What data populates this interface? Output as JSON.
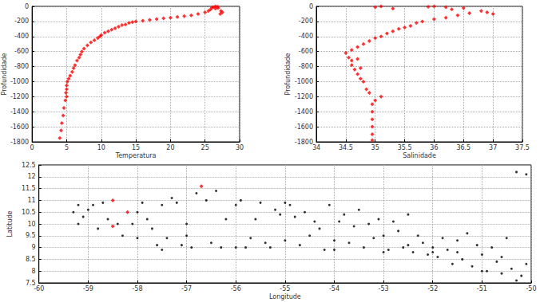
{
  "chart_data": [
    {
      "type": "scatter",
      "x_label": "Temperatura",
      "y_label": "Profundidade",
      "xlim": [
        0,
        30
      ],
      "xticks": [
        0,
        5,
        10,
        15,
        20,
        25,
        30
      ],
      "ylim": [
        -1800,
        0
      ],
      "yticks": [
        -1800,
        -1600,
        -1400,
        -1200,
        -1000,
        -800,
        -600,
        -400,
        -200,
        0
      ],
      "grid": true,
      "series": [
        {
          "color": "#ff0000",
          "marker": "diamond",
          "x": [
            26.5,
            26.8,
            26.2,
            27.3,
            27.5,
            27.2,
            26.9,
            26.5,
            25.8,
            26,
            25.5,
            25,
            24,
            23,
            22,
            21,
            20,
            19,
            18,
            17,
            16,
            15,
            14.5,
            14,
            13.5,
            13,
            12.5,
            12,
            11.5,
            11,
            10.5,
            10,
            9.8,
            9.5,
            9,
            8.5,
            8,
            7.5,
            7.2,
            7,
            6.8,
            6.5,
            6.2,
            6,
            5.8,
            5.5,
            5.3,
            5.1,
            5,
            5,
            4.9,
            5,
            4.8,
            4.6,
            4.5,
            4.3,
            4.2,
            4
          ],
          "y": [
            0,
            -5,
            -10,
            -60,
            -80,
            -100,
            -20,
            -30,
            -40,
            -15,
            -60,
            -80,
            -100,
            -120,
            -130,
            -140,
            -150,
            -160,
            -170,
            -180,
            -190,
            -200,
            -210,
            -220,
            -240,
            -250,
            -270,
            -290,
            -310,
            -330,
            -350,
            -380,
            -400,
            -420,
            -450,
            -480,
            -520,
            -560,
            -600,
            -640,
            -680,
            -720,
            -780,
            -820,
            -870,
            -920,
            -960,
            -1000,
            -1050,
            -1100,
            -1150,
            -1200,
            -1250,
            -1350,
            -1450,
            -1550,
            -1650,
            -1750
          ]
        }
      ]
    },
    {
      "type": "scatter",
      "x_label": "Salinidade",
      "y_label": "Profundidade",
      "xlim": [
        34,
        37.5
      ],
      "xticks": [
        34,
        34.5,
        35,
        35.5,
        36,
        36.5,
        37,
        37.5
      ],
      "ylim": [
        -1800,
        0
      ],
      "yticks": [
        -1800,
        -1600,
        -1400,
        -1200,
        -1000,
        -800,
        -600,
        -400,
        -200,
        0
      ],
      "grid": true,
      "series": [
        {
          "color": "#ff0000",
          "marker": "diamond",
          "x": [
            36.9,
            37,
            36.8,
            36.5,
            36.2,
            36,
            35.9,
            36.3,
            36.6,
            36.4,
            36.2,
            36,
            35.8,
            35.7,
            35.6,
            35.5,
            35.4,
            35.3,
            35.2,
            35.1,
            35,
            34.9,
            34.8,
            34.7,
            34.6,
            34.5,
            34.55,
            34.6,
            34.6,
            34.65,
            34.7,
            34.75,
            34.8,
            34.85,
            34.9,
            35.1,
            35,
            34.95,
            34.95,
            34.95,
            34.95,
            34.95,
            34.95,
            35.1,
            35,
            35.3,
            34.7,
            34.75
          ],
          "y": [
            -80,
            -100,
            -60,
            -20,
            -10,
            0,
            -5,
            -40,
            -90,
            -120,
            -150,
            -170,
            -200,
            -220,
            -260,
            -280,
            -300,
            -330,
            -360,
            -400,
            -420,
            -460,
            -500,
            -540,
            -580,
            -620,
            -680,
            -720,
            -780,
            -840,
            -900,
            -960,
            -1000,
            -1100,
            -1150,
            -1200,
            -1250,
            -1300,
            -1400,
            -1500,
            -1600,
            -1700,
            -1780,
            0,
            -10,
            -30,
            -700,
            -820
          ]
        }
      ]
    },
    {
      "type": "scatter",
      "x_label": "Longitude",
      "y_label": "Latitude",
      "xlim": [
        -60,
        -50
      ],
      "xticks": [
        -60,
        -59,
        -58,
        -57,
        -56,
        -55,
        -54,
        -53,
        -52,
        -51,
        -50
      ],
      "ylim": [
        7.5,
        12.5
      ],
      "yticks": [
        7.5,
        8,
        8.5,
        9,
        9.5,
        10,
        10.5,
        11,
        11.5,
        12,
        12.5
      ],
      "grid": true,
      "series": [
        {
          "color": "#000000",
          "marker": "circle",
          "x": [
            -59.3,
            -59.2,
            -59.1,
            -59.0,
            -58.9,
            -58.7,
            -58.6,
            -58.4,
            -58.3,
            -58.1,
            -58.0,
            -58.0,
            -57.9,
            -57.8,
            -57.7,
            -57.6,
            -57.5,
            -57.5,
            -57.4,
            -57.3,
            -57.2,
            -57.1,
            -57.0,
            -56.9,
            -56.8,
            -56.6,
            -56.5,
            -56.4,
            -56.3,
            -56.2,
            -56.0,
            -55.9,
            -55.8,
            -55.7,
            -55.6,
            -55.5,
            -55.4,
            -55.3,
            -55.2,
            -55.1,
            -55.0,
            -54.9,
            -54.8,
            -54.7,
            -54.6,
            -54.5,
            -54.4,
            -54.3,
            -54.2,
            -54.1,
            -54.0,
            -53.9,
            -53.8,
            -53.7,
            -53.6,
            -53.5,
            -53.4,
            -53.3,
            -53.2,
            -53.1,
            -53.0,
            -52.9,
            -52.8,
            -52.7,
            -52.6,
            -52.5,
            -52.4,
            -52.3,
            -52.2,
            -52.1,
            -52.0,
            -51.9,
            -51.8,
            -51.7,
            -51.6,
            -51.5,
            -51.4,
            -51.3,
            -51.2,
            -51.1,
            -51.0,
            -50.9,
            -50.8,
            -50.7,
            -50.6,
            -50.5,
            -50.4,
            -50.3,
            -50.2,
            -50.1,
            -50.1,
            -50.3,
            -50.6,
            -51.0,
            -51.5,
            -52.0,
            -52.5,
            -53.0,
            -54.0,
            -55.0,
            -56.0,
            -57.0,
            -58.8,
            -59.2
          ],
          "y": [
            10.5,
            10.0,
            10.3,
            10.6,
            10.8,
            10.9,
            10.2,
            10.0,
            9.5,
            10.0,
            10.5,
            9.4,
            10.9,
            10.2,
            9.8,
            9.1,
            8.9,
            10.8,
            9.4,
            11.1,
            10.9,
            9.1,
            9.5,
            9.0,
            11.3,
            11.0,
            9.2,
            11.4,
            9.0,
            10.2,
            10.8,
            11.0,
            9.0,
            9.4,
            10.2,
            10.9,
            9.2,
            9.0,
            10.6,
            10.4,
            9.3,
            10.8,
            10.3,
            9.1,
            10.5,
            9.5,
            10.1,
            9.8,
            8.9,
            10.8,
            9.3,
            10.1,
            10.4,
            9.2,
            9.9,
            10.6,
            9.0,
            10.0,
            9.4,
            10.2,
            9.5,
            8.9,
            10.1,
            9.7,
            9.0,
            10.4,
            8.8,
            9.5,
            9.2,
            8.7,
            9.0,
            8.6,
            9.4,
            8.9,
            8.3,
            9.3,
            8.5,
            9.6,
            8.2,
            9.1,
            8.7,
            8.0,
            9.0,
            8.4,
            7.9,
            9.4,
            8.1,
            12.2,
            7.8,
            12.1,
            8.3,
            7.6,
            8.6,
            8.0,
            8.8,
            8.8,
            9.1,
            8.8,
            8.9,
            10.9,
            9.0,
            10.0,
            9.8,
            10.8
          ]
        },
        {
          "color": "#ff0000",
          "marker": "diamond",
          "x": [
            -58.5,
            -58.2,
            -58.5,
            -56.7
          ],
          "y": [
            11.0,
            10.5,
            9.9,
            11.6
          ]
        }
      ]
    }
  ]
}
